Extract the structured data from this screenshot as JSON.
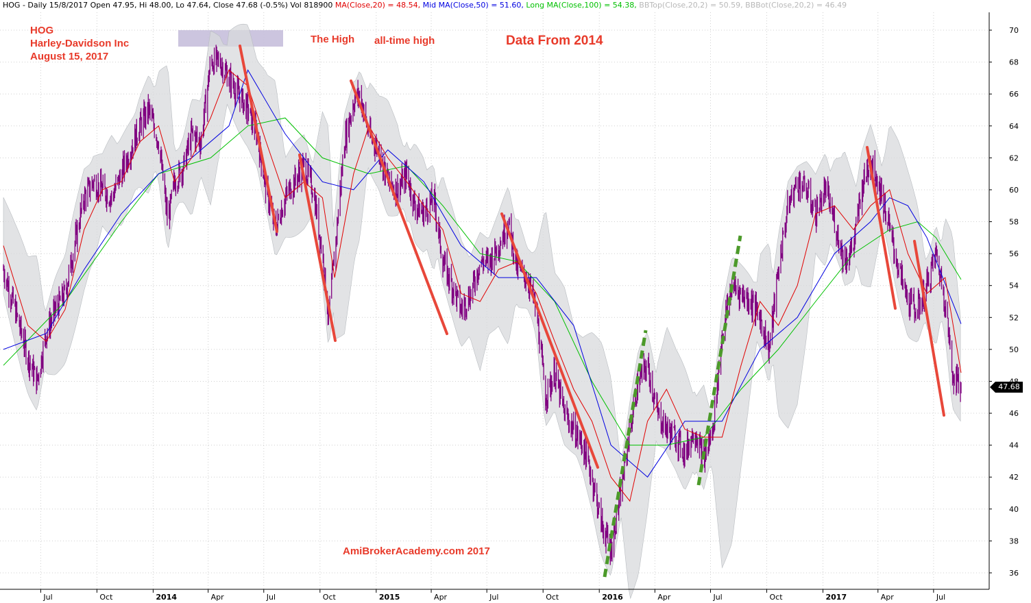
{
  "header": {
    "prefix": "HOG - Daily 15/8/2017 Open 47.95, Hi 48.00, Lo 47.64, Close 47.68 (-0.5%) Vol 818900",
    "ma20": "MA(Close,20) = 48.54,",
    "ma50": "Mid MA(Close,50) = 51.60,",
    "ma100": "Long MA(Close,100) = 54.38,",
    "bbtop": "BBTop(Close,20,2) = 50.59,",
    "bbbot": "BBBot(Close,20,2) = 46.49"
  },
  "annotations": {
    "ticker": "HOG",
    "company": "Harley-Davidson Inc",
    "date": "August 15, 2017",
    "the_high": "The High",
    "all_time_high": "all-time high",
    "data_from": "Data From 2014",
    "watermark": "AmiBrokerAcademy.com  2017"
  },
  "last_price": "47.68",
  "colors": {
    "price": "#800080",
    "ma20": "#e00000",
    "ma50": "#0000e0",
    "ma100": "#00c000",
    "bollinger_band": "#d8dadc",
    "downtrend": "#e8473a",
    "uptrend": "#4c9a2a",
    "annotation": "#e83a2a",
    "highlight": "#c7bfdc"
  },
  "chart_data": {
    "type": "line",
    "title": "",
    "xlabel": "",
    "ylabel": "",
    "ylim": [
      35,
      71
    ],
    "xlim": [
      "2013-05-01",
      "2017-09-30"
    ],
    "grid": true,
    "y_axis_position": "right",
    "yticks": [
      36,
      38,
      40,
      42,
      44,
      46,
      48,
      50,
      52,
      54,
      56,
      58,
      60,
      62,
      64,
      66,
      68,
      70
    ],
    "xticks": [
      {
        "label": "Jul",
        "date": "2013-07-01",
        "bold": false
      },
      {
        "label": "Oct",
        "date": "2013-10-01",
        "bold": false
      },
      {
        "label": "2014",
        "date": "2014-01-01",
        "bold": true
      },
      {
        "label": "Apr",
        "date": "2014-04-01",
        "bold": false
      },
      {
        "label": "Jul",
        "date": "2014-07-01",
        "bold": false
      },
      {
        "label": "Oct",
        "date": "2014-10-01",
        "bold": false
      },
      {
        "label": "2015",
        "date": "2015-01-01",
        "bold": true
      },
      {
        "label": "Apr",
        "date": "2015-04-01",
        "bold": false
      },
      {
        "label": "Jul",
        "date": "2015-07-01",
        "bold": false
      },
      {
        "label": "Oct",
        "date": "2015-10-01",
        "bold": false
      },
      {
        "label": "2016",
        "date": "2016-01-01",
        "bold": true
      },
      {
        "label": "Apr",
        "date": "2016-04-01",
        "bold": false
      },
      {
        "label": "Jul",
        "date": "2016-07-01",
        "bold": false
      },
      {
        "label": "Oct",
        "date": "2016-10-01",
        "bold": false
      },
      {
        "label": "2017",
        "date": "2017-01-01",
        "bold": true
      },
      {
        "label": "Apr",
        "date": "2017-04-01",
        "bold": false
      },
      {
        "label": "Jul",
        "date": "2017-07-01",
        "bold": false
      }
    ],
    "price_close": {
      "x": [
        "2013-05-01",
        "2013-05-20",
        "2013-06-10",
        "2013-06-25",
        "2013-07-10",
        "2013-07-25",
        "2013-08-10",
        "2013-08-25",
        "2013-09-10",
        "2013-09-25",
        "2013-10-10",
        "2013-10-25",
        "2013-11-10",
        "2013-11-25",
        "2013-12-10",
        "2013-12-25",
        "2014-01-10",
        "2014-01-25",
        "2014-02-05",
        "2014-02-20",
        "2014-03-05",
        "2014-03-20",
        "2014-04-05",
        "2014-04-20",
        "2014-05-05",
        "2014-05-20",
        "2014-06-05",
        "2014-06-20",
        "2014-07-05",
        "2014-07-20",
        "2014-08-05",
        "2014-08-20",
        "2014-09-05",
        "2014-09-20",
        "2014-10-05",
        "2014-10-15",
        "2014-10-25",
        "2014-11-10",
        "2014-11-25",
        "2014-12-05",
        "2014-12-20",
        "2015-01-05",
        "2015-01-20",
        "2015-02-05",
        "2015-02-20",
        "2015-03-05",
        "2015-03-20",
        "2015-04-05",
        "2015-04-20",
        "2015-05-05",
        "2015-05-20",
        "2015-06-05",
        "2015-06-20",
        "2015-07-05",
        "2015-07-20",
        "2015-08-05",
        "2015-08-20",
        "2015-09-05",
        "2015-09-20",
        "2015-10-05",
        "2015-10-20",
        "2015-11-05",
        "2015-11-20",
        "2015-12-05",
        "2015-12-20",
        "2016-01-05",
        "2016-01-20",
        "2016-02-05",
        "2016-02-20",
        "2016-03-05",
        "2016-03-20",
        "2016-04-05",
        "2016-04-20",
        "2016-05-05",
        "2016-05-20",
        "2016-06-05",
        "2016-06-20",
        "2016-07-05",
        "2016-07-20",
        "2016-08-05",
        "2016-08-20",
        "2016-09-05",
        "2016-09-20",
        "2016-10-05",
        "2016-10-20",
        "2016-11-05",
        "2016-11-20",
        "2016-12-05",
        "2016-12-20",
        "2017-01-05",
        "2017-01-20",
        "2017-02-05",
        "2017-02-20",
        "2017-03-05",
        "2017-03-20",
        "2017-04-05",
        "2017-04-20",
        "2017-05-05",
        "2017-05-20",
        "2017-06-05",
        "2017-06-20",
        "2017-07-05",
        "2017-07-20",
        "2017-08-01",
        "2017-08-15"
      ],
      "values": [
        55.0,
        52.5,
        49.5,
        48.0,
        51.0,
        52.5,
        53.5,
        56.5,
        59.5,
        60.5,
        60.0,
        59.5,
        61.0,
        62.5,
        64.0,
        65.0,
        63.0,
        58.0,
        60.5,
        61.5,
        63.5,
        63.0,
        68.0,
        68.0,
        67.0,
        66.0,
        65.0,
        63.5,
        60.0,
        57.5,
        59.5,
        60.5,
        61.5,
        60.0,
        56.0,
        52.0,
        56.0,
        63.0,
        65.5,
        66.0,
        63.5,
        62.5,
        60.5,
        60.0,
        61.0,
        59.0,
        58.5,
        59.5,
        55.5,
        54.0,
        52.5,
        53.5,
        55.5,
        55.5,
        56.5,
        58.0,
        55.0,
        54.5,
        52.5,
        47.0,
        48.5,
        46.0,
        45.0,
        44.0,
        42.0,
        39.0,
        37.5,
        41.0,
        45.0,
        48.0,
        49.0,
        46.0,
        45.0,
        44.5,
        43.5,
        45.0,
        43.0,
        45.0,
        51.0,
        54.0,
        53.5,
        53.0,
        52.0,
        50.0,
        55.0,
        59.0,
        60.5,
        60.0,
        58.5,
        60.0,
        58.0,
        55.5,
        56.5,
        60.0,
        62.0,
        60.0,
        57.5,
        55.0,
        53.0,
        52.5,
        54.0,
        56.0,
        53.0,
        48.5,
        47.68
      ]
    },
    "ma20": {
      "x": [
        "2013-05-01",
        "2013-06-10",
        "2013-07-10",
        "2013-08-10",
        "2013-09-10",
        "2013-10-10",
        "2013-11-10",
        "2013-12-10",
        "2014-01-10",
        "2014-02-05",
        "2014-03-05",
        "2014-04-05",
        "2014-05-05",
        "2014-06-05",
        "2014-07-05",
        "2014-08-05",
        "2014-09-05",
        "2014-10-05",
        "2014-10-25",
        "2014-11-25",
        "2014-12-20",
        "2015-01-20",
        "2015-02-20",
        "2015-03-20",
        "2015-04-20",
        "2015-05-20",
        "2015-06-20",
        "2015-07-20",
        "2015-08-20",
        "2015-09-20",
        "2015-10-20",
        "2015-11-20",
        "2015-12-20",
        "2016-01-20",
        "2016-02-20",
        "2016-03-20",
        "2016-04-20",
        "2016-05-20",
        "2016-06-20",
        "2016-07-20",
        "2016-08-20",
        "2016-09-20",
        "2016-10-20",
        "2016-11-20",
        "2016-12-20",
        "2017-01-20",
        "2017-02-20",
        "2017-03-20",
        "2017-04-20",
        "2017-05-20",
        "2017-06-20",
        "2017-07-20",
        "2017-08-15"
      ],
      "values": [
        56.5,
        51.5,
        50.5,
        52.5,
        57.5,
        60.0,
        60.5,
        63.0,
        64.0,
        60.5,
        62.0,
        64.5,
        67.5,
        66.5,
        63.0,
        59.5,
        60.5,
        59.5,
        54.5,
        61.0,
        64.0,
        62.0,
        60.5,
        59.0,
        57.5,
        53.5,
        53.0,
        55.0,
        55.5,
        53.5,
        50.5,
        47.5,
        45.5,
        42.0,
        40.5,
        45.5,
        47.5,
        45.0,
        44.5,
        44.5,
        49.0,
        53.0,
        51.5,
        54.0,
        58.5,
        59.0,
        57.5,
        59.0,
        60.0,
        56.0,
        53.5,
        54.5,
        48.54
      ]
    },
    "ma50": {
      "x": [
        "2013-05-01",
        "2013-07-10",
        "2013-09-10",
        "2013-11-10",
        "2014-01-10",
        "2014-03-05",
        "2014-05-05",
        "2014-06-05",
        "2014-08-05",
        "2014-10-05",
        "2014-11-25",
        "2015-01-20",
        "2015-03-20",
        "2015-05-20",
        "2015-07-20",
        "2015-09-20",
        "2015-11-20",
        "2016-01-20",
        "2016-03-20",
        "2016-05-20",
        "2016-07-20",
        "2016-09-20",
        "2016-11-20",
        "2017-01-20",
        "2017-03-20",
        "2017-04-20",
        "2017-05-20",
        "2017-06-20",
        "2017-08-15"
      ],
      "values": [
        50.0,
        51.0,
        55.0,
        58.5,
        61.0,
        62.0,
        64.0,
        67.5,
        63.5,
        60.5,
        60.0,
        62.5,
        60.5,
        56.5,
        54.5,
        54.5,
        51.5,
        44.0,
        42.0,
        45.5,
        45.5,
        50.0,
        52.0,
        56.0,
        58.0,
        59.5,
        59.0,
        57.0,
        51.6
      ]
    },
    "ma100": {
      "x": [
        "2013-05-01",
        "2013-08-10",
        "2013-11-10",
        "2014-01-10",
        "2014-04-05",
        "2014-06-05",
        "2014-08-05",
        "2014-10-05",
        "2014-12-20",
        "2015-02-20",
        "2015-04-20",
        "2015-06-20",
        "2015-08-20",
        "2015-10-20",
        "2015-12-20",
        "2016-02-20",
        "2016-04-20",
        "2016-06-20",
        "2016-08-20",
        "2016-10-20",
        "2016-12-20",
        "2017-02-20",
        "2017-04-20",
        "2017-06-05",
        "2017-07-05",
        "2017-08-15"
      ],
      "values": [
        49.0,
        53.0,
        58.0,
        61.0,
        62.0,
        64.0,
        64.5,
        62.0,
        61.0,
        61.5,
        59.0,
        56.0,
        55.5,
        53.0,
        48.0,
        44.0,
        44.0,
        44.5,
        47.5,
        50.0,
        53.0,
        56.0,
        57.5,
        58.0,
        57.0,
        54.38
      ]
    }
  }
}
